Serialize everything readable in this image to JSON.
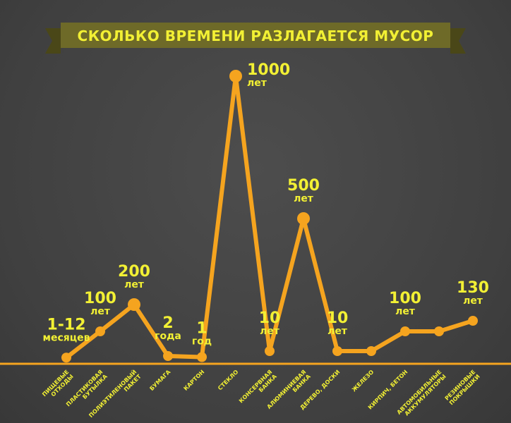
{
  "chart_data": {
    "type": "line",
    "title": "СКОЛЬКО ВРЕМЕНИ РАЗЛАГАЕТСЯ МУСОР",
    "categories": [
      [
        "ПИЩЕВЫЕ",
        "ОТХОДЫ"
      ],
      [
        "ПЛАСТИКОВАЯ",
        "БУТЫЛКА"
      ],
      [
        "ПОЛИЭТИЛЕНОВЫЙ",
        "ПАКЕТ"
      ],
      [
        "БУМАГА"
      ],
      [
        "КАРТОН"
      ],
      [
        "СТЕКЛО"
      ],
      [
        "КОНСЕРВНАЯ",
        "БАНКА"
      ],
      [
        "АЛЮМИНИЕВАЯ",
        "БАНКА"
      ],
      [
        "ДЕРЕВО, ДОСКИ"
      ],
      [
        "ЖЕЛЕЗО"
      ],
      [
        "КИРПИЧ, БЕТОН"
      ],
      [
        "АВТОМОБИЛЬНЫЕ",
        "АККУМУЛЯТОРЫ"
      ],
      [
        "РЕЗИНОВЫЕ",
        "ПОКРЫШКИ"
      ]
    ],
    "points": [
      {
        "value": 0.5,
        "label_num": "1-12",
        "label_unit": "месяцев"
      },
      {
        "value": 100,
        "label_num": "100",
        "label_unit": "лет"
      },
      {
        "value": 200,
        "label_num": "200",
        "label_unit": "лет"
      },
      {
        "value": 2,
        "label_num": "2",
        "label_unit": "года"
      },
      {
        "value": 1,
        "label_num": "1",
        "label_unit": "год"
      },
      {
        "value": 1000,
        "label_num": "1000",
        "label_unit": "лет"
      },
      {
        "value": 10,
        "label_num": "10",
        "label_unit": "лет"
      },
      {
        "value": 500,
        "label_num": "500",
        "label_unit": "лет"
      },
      {
        "value": 10,
        "label_num": "10",
        "label_unit": "лет"
      },
      {
        "value": 10,
        "label_num": "",
        "label_unit": ""
      },
      {
        "value": 100,
        "label_num": "100",
        "label_unit": "лет"
      },
      {
        "value": 100,
        "label_num": "",
        "label_unit": ""
      },
      {
        "value": 130,
        "label_num": "130",
        "label_unit": "лет"
      }
    ],
    "colors": {
      "line": "#f5a41f",
      "marker": "#f5a41f",
      "label": "#f2f034",
      "category": "#f2f034",
      "title_text": "#f2f034",
      "banner": "#6e6a28",
      "banner_dark": "#4a4718",
      "baseline": "#f5a41f"
    }
  }
}
